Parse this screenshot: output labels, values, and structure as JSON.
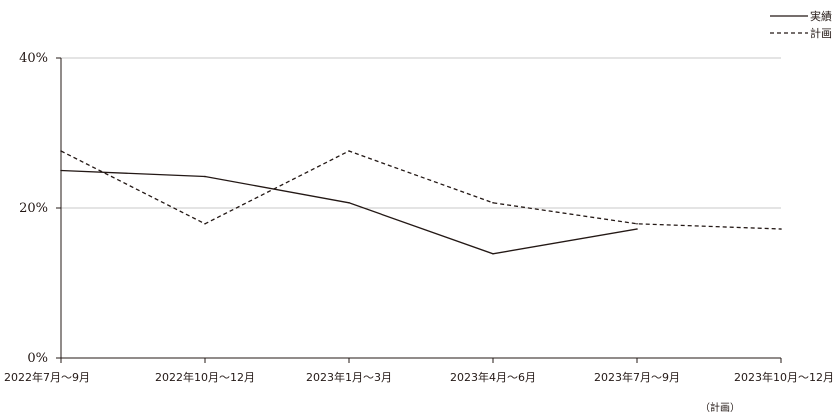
{
  "chart_data": {
    "type": "line",
    "title": "",
    "xlabel": "",
    "ylabel": "",
    "categories": [
      "2022年7月～9月",
      "2022年10月～12月",
      "2023年1月～3月",
      "2023年4月～6月",
      "2023年7月～9月",
      "2023年10月～12月"
    ],
    "category_note": "（計画）",
    "category_note_index": 5,
    "ylim": [
      0,
      40
    ],
    "yticks": [
      0,
      20,
      40
    ],
    "ytick_labels": [
      "0%",
      "20%",
      "40%"
    ],
    "grid": true,
    "legend_position": "top-right",
    "series": [
      {
        "name": "実績",
        "style": "solid",
        "color": "#231815",
        "values": [
          25.0,
          24.2,
          20.7,
          13.9,
          17.2,
          null
        ]
      },
      {
        "name": "計画",
        "style": "dashed",
        "color": "#231815",
        "values": [
          27.6,
          17.9,
          27.6,
          20.7,
          17.9,
          17.2
        ]
      }
    ],
    "colors": {
      "axis": "#231815",
      "grid": "#c8c8c8"
    }
  }
}
